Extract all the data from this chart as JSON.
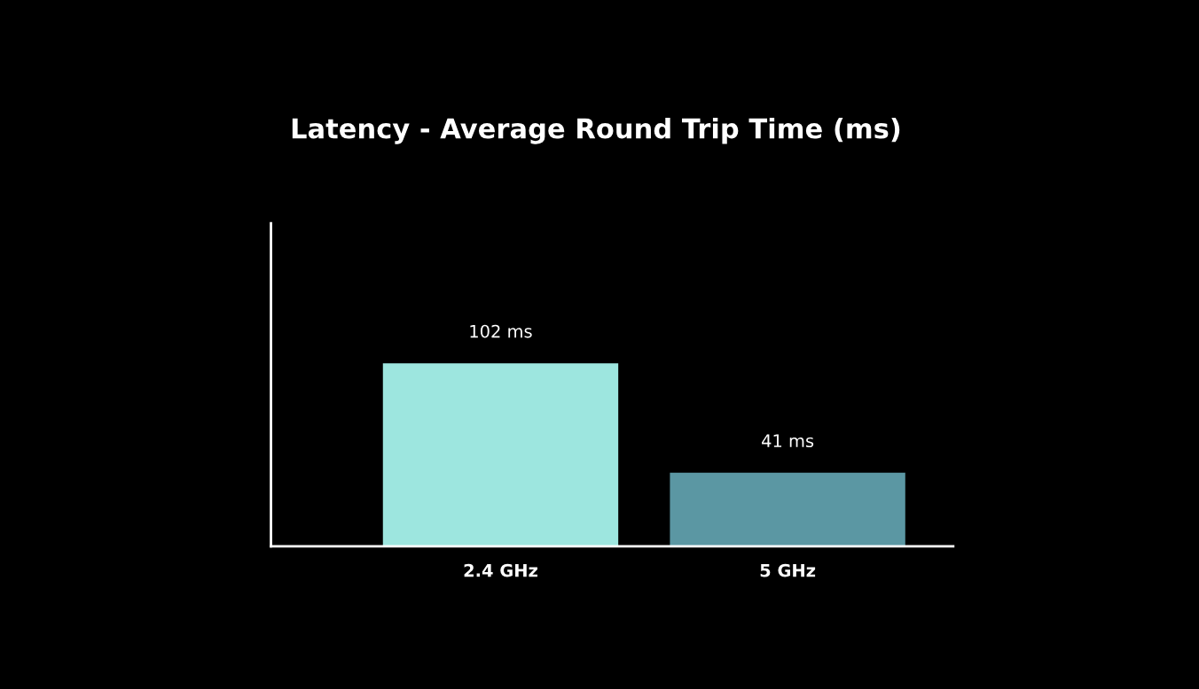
{
  "chart_data": {
    "type": "bar",
    "title": "Latency - Average Round Trip Time (ms)",
    "categories": [
      "2.4 GHz",
      "5 GHz"
    ],
    "values": [
      102,
      41
    ],
    "colors": [
      "#9de6df",
      "#5b97a3"
    ],
    "value_labels": [
      "102 ms",
      "41 ms"
    ],
    "ylim": [
      0,
      180
    ],
    "tick_labels": "x",
    "grid": false,
    "legend": false
  }
}
